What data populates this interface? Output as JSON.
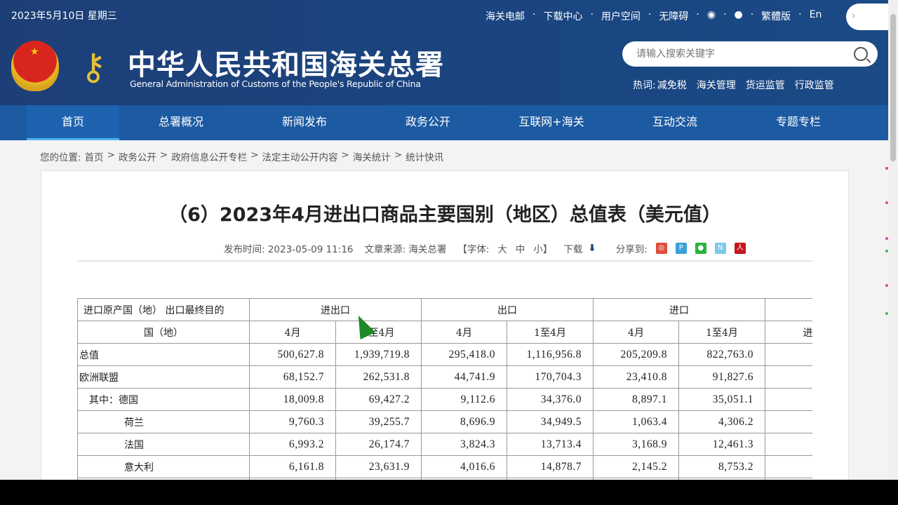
{
  "header": {
    "date": "2023年5月10日 星期三",
    "top_links": [
      "海关电邮",
      "下载中心",
      "用户空间",
      "无障碍"
    ],
    "traditional": "繁體版",
    "english": "En",
    "title": "中华人民共和国海关总署",
    "subtitle": "General Administration of Customs of the People's Republic of China",
    "search_placeholder": "请输入搜索关键字",
    "hot_label": "热词:",
    "hot_words": [
      "减免税",
      "海关管理",
      "货运监管",
      "行政监管"
    ]
  },
  "nav": [
    "首页",
    "总署概况",
    "新闻发布",
    "政务公开",
    "互联网+海关",
    "互动交流",
    "专题专栏"
  ],
  "breadcrumb": {
    "label": "您的位置:",
    "items": [
      "首页",
      "政务公开",
      "政府信息公开专栏",
      "法定主动公开内容",
      "海关统计",
      "统计快讯"
    ]
  },
  "article": {
    "title": "（6）2023年4月进出口商品主要国别（地区）总值表（美元值）",
    "publish": "发布时间: 2023-05-09 11:16",
    "source": "文章来源: 海关总署",
    "font_label": "【字体:",
    "font_sizes": [
      "大",
      "中",
      "小"
    ],
    "font_close": "】",
    "download": "下载",
    "share": "分享到:"
  },
  "table": {
    "corner_line1": "进口原产国（地） 出口最终目的",
    "corner_line2": "国（地）",
    "groups": [
      "进出口",
      "出口",
      "进口",
      ""
    ],
    "subheaders": [
      "4月",
      "1至4月",
      "4月",
      "1至4月",
      "4月",
      "1至4月",
      "进出口"
    ],
    "rows": [
      {
        "name": "总值",
        "values": [
          "500,627.8",
          "1,939,719.8",
          "295,418.0",
          "1,116,956.8",
          "205,209.8",
          "822,763.0",
          "—"
        ]
      },
      {
        "name": "欧洲联盟",
        "values": [
          "68,152.7",
          "262,531.8",
          "44,741.9",
          "170,704.3",
          "23,410.8",
          "91,827.6",
          "—"
        ]
      },
      {
        "name": "其中：德国",
        "values": [
          "18,009.8",
          "69,427.2",
          "9,112.6",
          "34,376.0",
          "8,897.1",
          "35,051.1",
          "—"
        ]
      },
      {
        "name": "荷兰",
        "values": [
          "9,760.3",
          "39,255.7",
          "8,696.9",
          "34,949.5",
          "1,063.4",
          "4,306.2",
          "—"
        ]
      },
      {
        "name": "法国",
        "values": [
          "6,993.2",
          "26,174.7",
          "3,824.3",
          "13,713.4",
          "3,168.9",
          "12,461.3",
          "—"
        ]
      },
      {
        "name": "意大利",
        "values": [
          "6,161.8",
          "23,631.9",
          "4,016.6",
          "14,878.7",
          "2,145.2",
          "8,753.2",
          "—"
        ]
      }
    ]
  },
  "colors": {
    "header_bg": "#1d3f78",
    "nav_bg": "#1c5aa2",
    "nav_active_underline": "#4db2f0",
    "cursor": "#1f8a28"
  }
}
